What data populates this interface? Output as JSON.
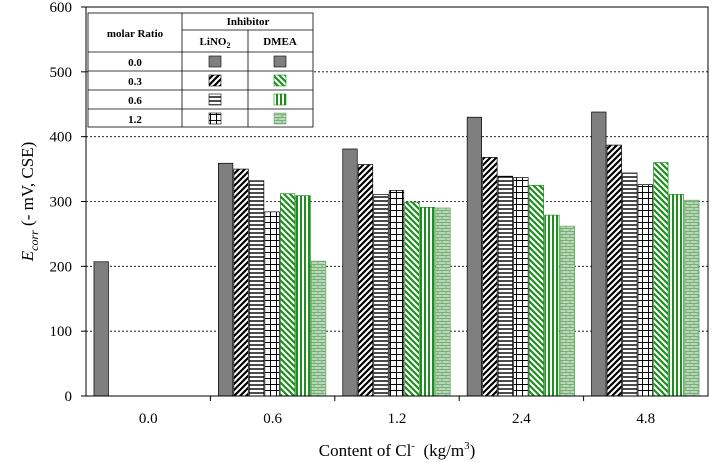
{
  "chart_data": {
    "type": "bar",
    "categories": [
      "0.0",
      "0.6",
      "1.2",
      "2.4",
      "4.8"
    ],
    "series": [
      {
        "name": "LiNO2 0.0",
        "values": [
          207,
          null,
          null,
          null,
          null
        ]
      },
      {
        "name": "LiNO2 0.3",
        "values": [
          null,
          null,
          null,
          null,
          null
        ]
      },
      {
        "name": "LiNO2 0.6",
        "values": [
          null,
          null,
          null,
          null,
          null
        ]
      },
      {
        "name": "LiNO2 1.2",
        "values": [
          null,
          null,
          null,
          null,
          null
        ]
      },
      {
        "name": "DMEA 0.3",
        "values": [
          null,
          null,
          null,
          null,
          null
        ]
      },
      {
        "name": "DMEA 0.6",
        "values": [
          null,
          null,
          null,
          null,
          null
        ]
      },
      {
        "name": "DMEA 1.2",
        "values": [
          null,
          null,
          null,
          null,
          null
        ]
      }
    ],
    "groups": [
      [
        207,
        null,
        null,
        null,
        null,
        null,
        null
      ],
      [
        359,
        350,
        332,
        284,
        312,
        309,
        208
      ],
      [
        381,
        357,
        311,
        317,
        299,
        291,
        290
      ],
      [
        430,
        368,
        339,
        337,
        325,
        279,
        262
      ],
      [
        438,
        387,
        344,
        326,
        360,
        311,
        302
      ]
    ],
    "xlabel_main": "Content of Cl",
    "xlabel_sup": "-",
    "xlabel_unit_prefix": "(kg/m",
    "xlabel_unit_sup": "3",
    "xlabel_unit_suffix": ")",
    "ylabel_main": "E",
    "ylabel_sub": "corr",
    "ylabel_rest": " (- mV, CSE)",
    "ylim": [
      0,
      600
    ],
    "yticks": [
      0,
      100,
      200,
      300,
      400,
      500,
      600
    ],
    "grid": "horizontal-dashed",
    "legend": {
      "placement": "top-left",
      "header_ratio": "molar Ratio",
      "header_inhibitor": "Inhibitor",
      "col_lino2_main": "LiNO",
      "col_lino2_sub": "2",
      "col_dmea": "DMEA",
      "rows": [
        "0.0",
        "0.3",
        "0.6",
        "1.2"
      ]
    },
    "colors": {
      "control": "#7f7f7f",
      "lino2": "#000000",
      "dmea": "#1e8f1e",
      "dmea_fill": "#b8d8b8"
    }
  }
}
